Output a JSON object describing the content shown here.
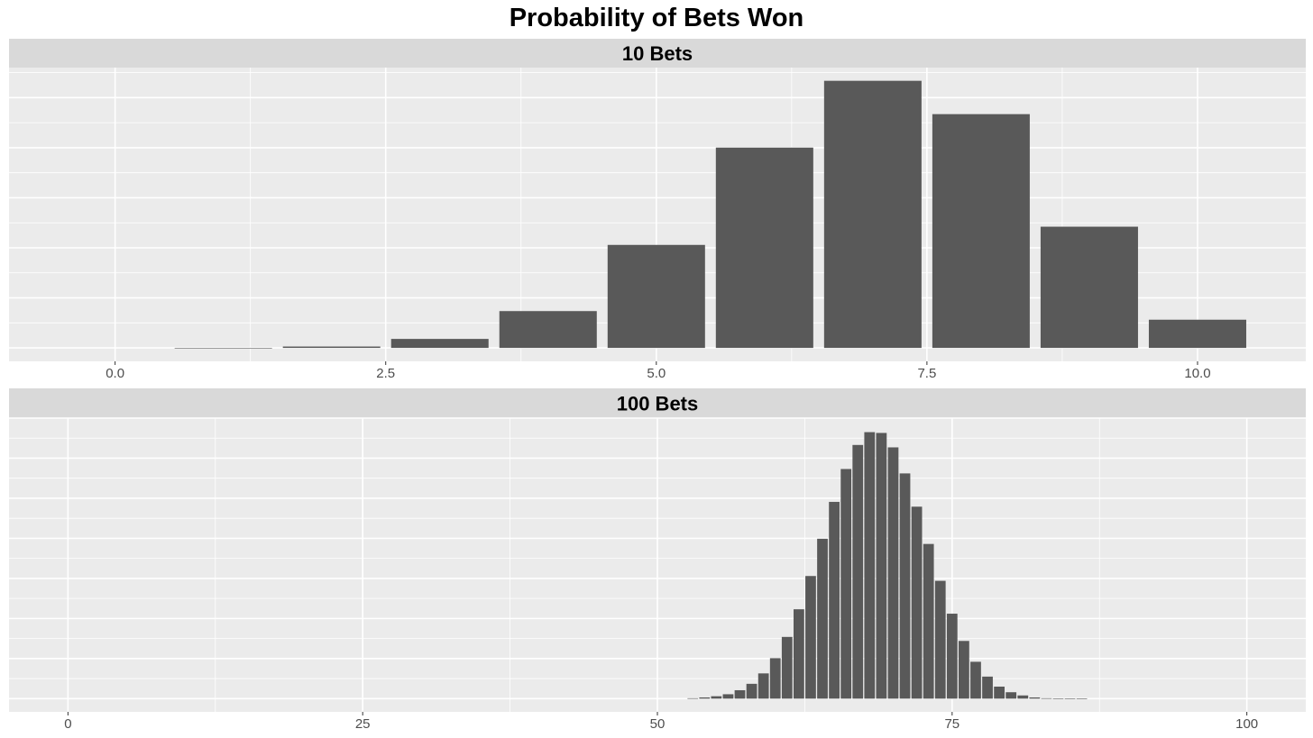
{
  "title": "Probability of Bets Won",
  "colors": {
    "panel_bg": "#EBEBEB",
    "strip_bg": "#D9D9D9",
    "bar_fill": "#595959",
    "grid": "#FFFFFF",
    "text": "#000000",
    "tick_text": "#4D4D4D"
  },
  "chart_data": [
    {
      "type": "bar",
      "facet": "10 Bets",
      "x": [
        0,
        1,
        2,
        3,
        4,
        5,
        6,
        7,
        8,
        9,
        10
      ],
      "values": [
        0.0,
        0.0001,
        0.0014,
        0.009,
        0.0368,
        0.1029,
        0.2001,
        0.2668,
        0.2335,
        0.1211,
        0.0282
      ],
      "xlim": [
        -0.98,
        11.0
      ],
      "ylim": [
        -0.0134,
        0.28
      ],
      "xticks": [
        0,
        2.5,
        5,
        7.5,
        10
      ],
      "xtick_labels": [
        "0.0",
        "2.5",
        "5.0",
        "7.5",
        "10.0"
      ],
      "grid": true
    },
    {
      "type": "bar",
      "facet": "100 Bets",
      "x": [
        53,
        54,
        55,
        56,
        57,
        58,
        59,
        60,
        61,
        62,
        63,
        64,
        65,
        66,
        67,
        68,
        69,
        70,
        71,
        72,
        73,
        74,
        75,
        76,
        77,
        78,
        79,
        80,
        81,
        82,
        83,
        84,
        85,
        86,
        87
      ],
      "values": [
        0.0001,
        0.0003,
        0.0006,
        0.0011,
        0.0021,
        0.0037,
        0.0063,
        0.0101,
        0.0154,
        0.0223,
        0.0306,
        0.0399,
        0.0491,
        0.0573,
        0.0633,
        0.0665,
        0.0663,
        0.0627,
        0.0562,
        0.0479,
        0.0386,
        0.0294,
        0.0212,
        0.0144,
        0.0092,
        0.0055,
        0.003,
        0.0016,
        0.0008,
        0.0003,
        0.0001,
        5e-05,
        2e-05,
        1e-05,
        0.0
      ],
      "xlim": [
        -5.0,
        105.0
      ],
      "ylim": [
        -0.0033,
        0.07
      ],
      "xticks": [
        0,
        25,
        50,
        75,
        100
      ],
      "xtick_labels": [
        "0",
        "25",
        "50",
        "75",
        "100"
      ],
      "grid": true
    }
  ]
}
